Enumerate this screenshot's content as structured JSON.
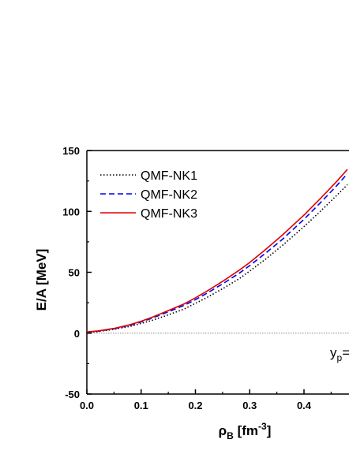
{
  "chart_data": {
    "type": "line",
    "xlabel_main": "ρ",
    "xlabel_sub": "B",
    "xlabel_unit_open": " [fm",
    "xlabel_unit_sup": "-3",
    "xlabel_unit_close": "]",
    "ylabel": "E/A [MeV]",
    "xlim": [
      0.0,
      0.48
    ],
    "ylim": [
      -50,
      150
    ],
    "xticks": [
      "0.0",
      "0.1",
      "0.2",
      "0.3",
      "0.4"
    ],
    "xtick_values": [
      0.0,
      0.1,
      0.2,
      0.3,
      0.4
    ],
    "yticks": [
      "-50",
      "0",
      "50",
      "100",
      "150"
    ],
    "ytick_values": [
      -50,
      0,
      50,
      100,
      150
    ],
    "reference_line": {
      "y": 0,
      "style": "dotted",
      "color": "#888888"
    },
    "annotation": {
      "text": "y",
      "sub": "p",
      "tail": "="
    },
    "legend_position": "top-left",
    "series": [
      {
        "name": "QMF-NK1",
        "color": "#000000",
        "dash": "dotted",
        "x": [
          0.0,
          0.02,
          0.05,
          0.08,
          0.1,
          0.12,
          0.15,
          0.18,
          0.2,
          0.22,
          0.25,
          0.28,
          0.3,
          0.33,
          0.36,
          0.4,
          0.43,
          0.46,
          0.48
        ],
        "y": [
          0.5,
          1.3,
          3.2,
          5.6,
          8.0,
          10.5,
          15.0,
          20.0,
          24.5,
          29.0,
          36.5,
          44.5,
          51.0,
          61.0,
          72.0,
          87.5,
          100.0,
          113.0,
          122.0
        ]
      },
      {
        "name": "QMF-NK2",
        "color": "#0000ee",
        "dash": "dashed",
        "x": [
          0.0,
          0.02,
          0.05,
          0.08,
          0.1,
          0.12,
          0.15,
          0.18,
          0.2,
          0.22,
          0.25,
          0.28,
          0.3,
          0.33,
          0.36,
          0.4,
          0.43,
          0.46,
          0.48
        ],
        "y": [
          0.8,
          1.6,
          3.6,
          6.5,
          9.2,
          12.3,
          17.5,
          23.0,
          27.5,
          32.5,
          40.5,
          49.0,
          55.5,
          66.0,
          77.0,
          93.5,
          107.0,
          121.0,
          131.0
        ]
      },
      {
        "name": "QMF-NK3",
        "color": "#dd0000",
        "dash": "solid",
        "x": [
          0.0,
          0.02,
          0.05,
          0.08,
          0.1,
          0.12,
          0.15,
          0.18,
          0.2,
          0.22,
          0.25,
          0.28,
          0.3,
          0.33,
          0.36,
          0.4,
          0.43,
          0.46,
          0.48
        ],
        "y": [
          1.0,
          1.8,
          3.9,
          7.0,
          9.8,
          13.0,
          18.5,
          24.2,
          29.0,
          34.2,
          42.5,
          51.5,
          58.0,
          69.0,
          80.5,
          97.0,
          110.5,
          124.5,
          134.5
        ]
      }
    ]
  }
}
